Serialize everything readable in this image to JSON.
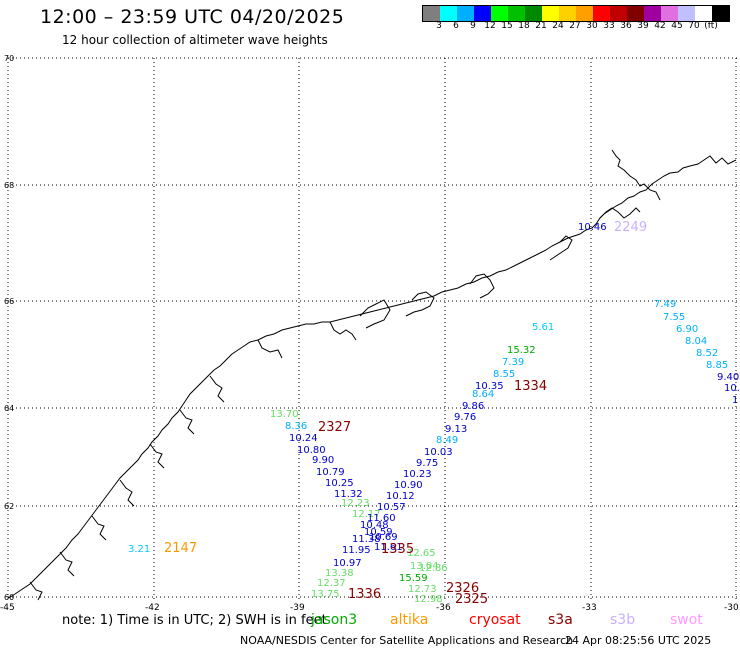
{
  "title": "12:00 – 23:59 UTC 04/20/2025",
  "subtitle": "12 hour collection of altimeter wave heights",
  "colorbar": {
    "colors": [
      "#7f7f7f",
      "#00ffff",
      "#00b0ff",
      "#0000ff",
      "#00ff00",
      "#00c000",
      "#008800",
      "#ffff00",
      "#ffd000",
      "#ffa000",
      "#ff0000",
      "#c00000",
      "#800000",
      "#a000a0",
      "#e070e0",
      "#c0c0ff",
      "#ffffff",
      "#000000"
    ],
    "labels": [
      "3",
      "6",
      "9",
      "12",
      "15",
      "18",
      "21",
      "24",
      "27",
      "30",
      "33",
      "36",
      "39",
      "42",
      "45",
      "70",
      "(ft)"
    ]
  },
  "axes": {
    "lat_labels": [
      "70",
      "68",
      "66",
      "64",
      "62",
      "60"
    ],
    "lon_labels": [
      "-45",
      "-42",
      "-39",
      "-36",
      "-33",
      "-30"
    ]
  },
  "chart_data": {
    "type": "scatter",
    "xlim": [
      -45,
      -30
    ],
    "ylim": [
      60,
      70
    ],
    "grid": true,
    "observations": [
      {
        "value": "10.46",
        "color": "#0000cc"
      },
      {
        "value": "7.49",
        "color": "#00b0ff"
      },
      {
        "value": "7.55",
        "color": "#00b0ff"
      },
      {
        "value": "6.90",
        "color": "#00b0ff"
      },
      {
        "value": "8.04",
        "color": "#00b0ff"
      },
      {
        "value": "8.52",
        "color": "#00b0ff"
      },
      {
        "value": "8.85",
        "color": "#00b0ff"
      },
      {
        "value": "9.40",
        "color": "#0000cc"
      },
      {
        "value": "10.",
        "color": "#0000cc"
      },
      {
        "value": "1",
        "color": "#0000cc"
      },
      {
        "value": "5.61",
        "color": "#00ccff"
      },
      {
        "value": "15.32",
        "color": "#00aa00"
      },
      {
        "value": "7.39",
        "color": "#00b0ff"
      },
      {
        "value": "8.55",
        "color": "#00b0ff"
      },
      {
        "value": "10.35",
        "color": "#0000cc"
      },
      {
        "value": "8.64",
        "color": "#00b0ff"
      },
      {
        "value": "9.86",
        "color": "#0000cc"
      },
      {
        "value": "9.76",
        "color": "#0000cc"
      },
      {
        "value": "9.13",
        "color": "#0000cc"
      },
      {
        "value": "8.49",
        "color": "#00b0ff"
      },
      {
        "value": "10.03",
        "color": "#0000cc"
      },
      {
        "value": "9.75",
        "color": "#0000cc"
      },
      {
        "value": "10.23",
        "color": "#0000cc"
      },
      {
        "value": "10.90",
        "color": "#0000cc"
      },
      {
        "value": "10.12",
        "color": "#0000cc"
      },
      {
        "value": "10.57",
        "color": "#0000cc"
      },
      {
        "value": "13.70",
        "color": "#66dd66"
      },
      {
        "value": "8.36",
        "color": "#00b0ff"
      },
      {
        "value": "10.24",
        "color": "#0000cc"
      },
      {
        "value": "10.80",
        "color": "#0000cc"
      },
      {
        "value": "9.90",
        "color": "#0000cc"
      },
      {
        "value": "10.79",
        "color": "#0000cc"
      },
      {
        "value": "10.25",
        "color": "#0000cc"
      },
      {
        "value": "11.32",
        "color": "#0000cc"
      },
      {
        "value": "12.23",
        "color": "#66dd66"
      },
      {
        "value": "12.17",
        "color": "#66dd66"
      },
      {
        "value": "11.60",
        "color": "#0000cc"
      },
      {
        "value": "10.48",
        "color": "#0000cc"
      },
      {
        "value": "10.59",
        "color": "#0000cc"
      },
      {
        "value": "11.38",
        "color": "#0000cc"
      },
      {
        "value": "10.69",
        "color": "#0000cc"
      },
      {
        "value": "11.95",
        "color": "#0000cc"
      },
      {
        "value": "11.61",
        "color": "#0000cc"
      },
      {
        "value": "12.65",
        "color": "#66dd66"
      },
      {
        "value": "13.04",
        "color": "#66dd66"
      },
      {
        "value": "10.97",
        "color": "#0000cc"
      },
      {
        "value": "13.38",
        "color": "#66dd66"
      },
      {
        "value": "12.86",
        "color": "#66dd66"
      },
      {
        "value": "12.37",
        "color": "#66dd66"
      },
      {
        "value": "15.59",
        "color": "#00aa00"
      },
      {
        "value": "13.75",
        "color": "#66dd66"
      },
      {
        "value": "12.73",
        "color": "#66dd66"
      },
      {
        "value": "12.98",
        "color": "#66dd66"
      },
      {
        "value": "3.21",
        "color": "#00ccff"
      }
    ],
    "pass_times": [
      {
        "value": "2249",
        "color": "#c8b0ff"
      },
      {
        "value": "1334",
        "color": "#880000"
      },
      {
        "value": "2327",
        "color": "#880000"
      },
      {
        "value": "2147",
        "color": "#ff9900"
      },
      {
        "value": "1335",
        "color": "#880000"
      },
      {
        "value": "1336",
        "color": "#880000"
      },
      {
        "value": "2326",
        "color": "#880000"
      },
      {
        "value": "2325",
        "color": "#880000"
      }
    ]
  },
  "note": "note:  1) Time is in UTC; 2) SWH is in feet",
  "satellites": [
    {
      "name": "jason3",
      "color": "#00aa00"
    },
    {
      "name": "altika",
      "color": "#ff9900"
    },
    {
      "name": "cryosat",
      "color": "#ff0000"
    },
    {
      "name": "s3a",
      "color": "#880000"
    },
    {
      "name": "s3b",
      "color": "#c8b0ff"
    },
    {
      "name": "swot",
      "color": "#ff99ff"
    }
  ],
  "footer": "NOAA/NESDIS Center for Satellite Applications and Research",
  "timestamp": "24 Apr 08:25:56 UTC 2025"
}
